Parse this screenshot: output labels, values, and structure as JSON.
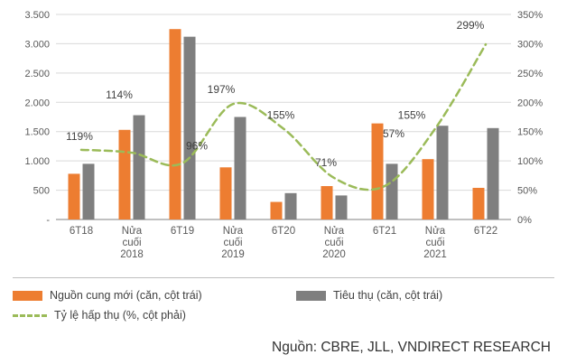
{
  "chart_data": {
    "type": "bar",
    "subtype": "combo_bar_line",
    "categories": [
      "6T18",
      "Nửa cuối 2018",
      "6T19",
      "Nửa cuối 2019",
      "6T20",
      "Nửa cuối 2020",
      "6T21",
      "Nửa cuối 2021",
      "6T22"
    ],
    "categories_wrapped": [
      [
        "6T18"
      ],
      [
        "Nửa",
        "cuối",
        "2018"
      ],
      [
        "6T19"
      ],
      [
        "Nửa",
        "cuối",
        "2019"
      ],
      [
        "6T20"
      ],
      [
        "Nửa",
        "cuối",
        "2020"
      ],
      [
        "6T21"
      ],
      [
        "Nửa",
        "cuối",
        "2021"
      ],
      [
        "6T22"
      ]
    ],
    "series": [
      {
        "name": "Nguồn cung mới (căn, cột trái)",
        "type": "bar",
        "axis": "left",
        "color": "#ED7D31",
        "values": [
          780,
          1530,
          3250,
          890,
          300,
          570,
          1640,
          1030,
          540
        ]
      },
      {
        "name": "Tiêu thụ (căn, cột trái)",
        "type": "bar",
        "axis": "left",
        "color": "#7F7F7F",
        "values": [
          950,
          1780,
          3120,
          1750,
          450,
          410,
          950,
          1600,
          1560
        ]
      },
      {
        "name": "Tỷ lệ hấp thụ (%, cột phải)",
        "type": "line",
        "axis": "right",
        "color": "#9BBB59",
        "dashed": true,
        "values": [
          119,
          114,
          96,
          197,
          155,
          71,
          57,
          155,
          299
        ],
        "point_labels": [
          "119%",
          "114%",
          "96%",
          "197%",
          "155%",
          "71%",
          "57%",
          "155%",
          "299%"
        ]
      }
    ],
    "left_axis": {
      "min": 0,
      "max": 3500,
      "step": 500,
      "tick_labels": [
        "-",
        "500",
        "1.000",
        "1.500",
        "2.000",
        "2.500",
        "3.000",
        "3.500"
      ]
    },
    "right_axis": {
      "min": 0,
      "max": 350,
      "step": 50,
      "tick_labels": [
        "0%",
        "50%",
        "100%",
        "150%",
        "200%",
        "250%",
        "300%",
        "350%"
      ]
    },
    "grid": true,
    "legend_position": "bottom",
    "title": "",
    "xlabel": "",
    "ylabel": ""
  },
  "legend": {
    "items": [
      {
        "label": "Nguồn cung mới (căn, cột trái)",
        "swatch": "bar",
        "color": "#ED7D31"
      },
      {
        "label": "Tiêu thụ (căn, cột trái)",
        "swatch": "bar",
        "color": "#7F7F7F"
      },
      {
        "label": "Tỷ lệ hấp thụ (%, cột phải)",
        "swatch": "dashed-line",
        "color": "#9BBB59"
      }
    ]
  },
  "source_note": "Nguồn: CBRE, JLL, VNDIRECT RESEARCH",
  "colors": {
    "grid": "#D9D9D9",
    "axis_line": "#808080",
    "axis_text": "#595959",
    "label_text": "#404040"
  }
}
